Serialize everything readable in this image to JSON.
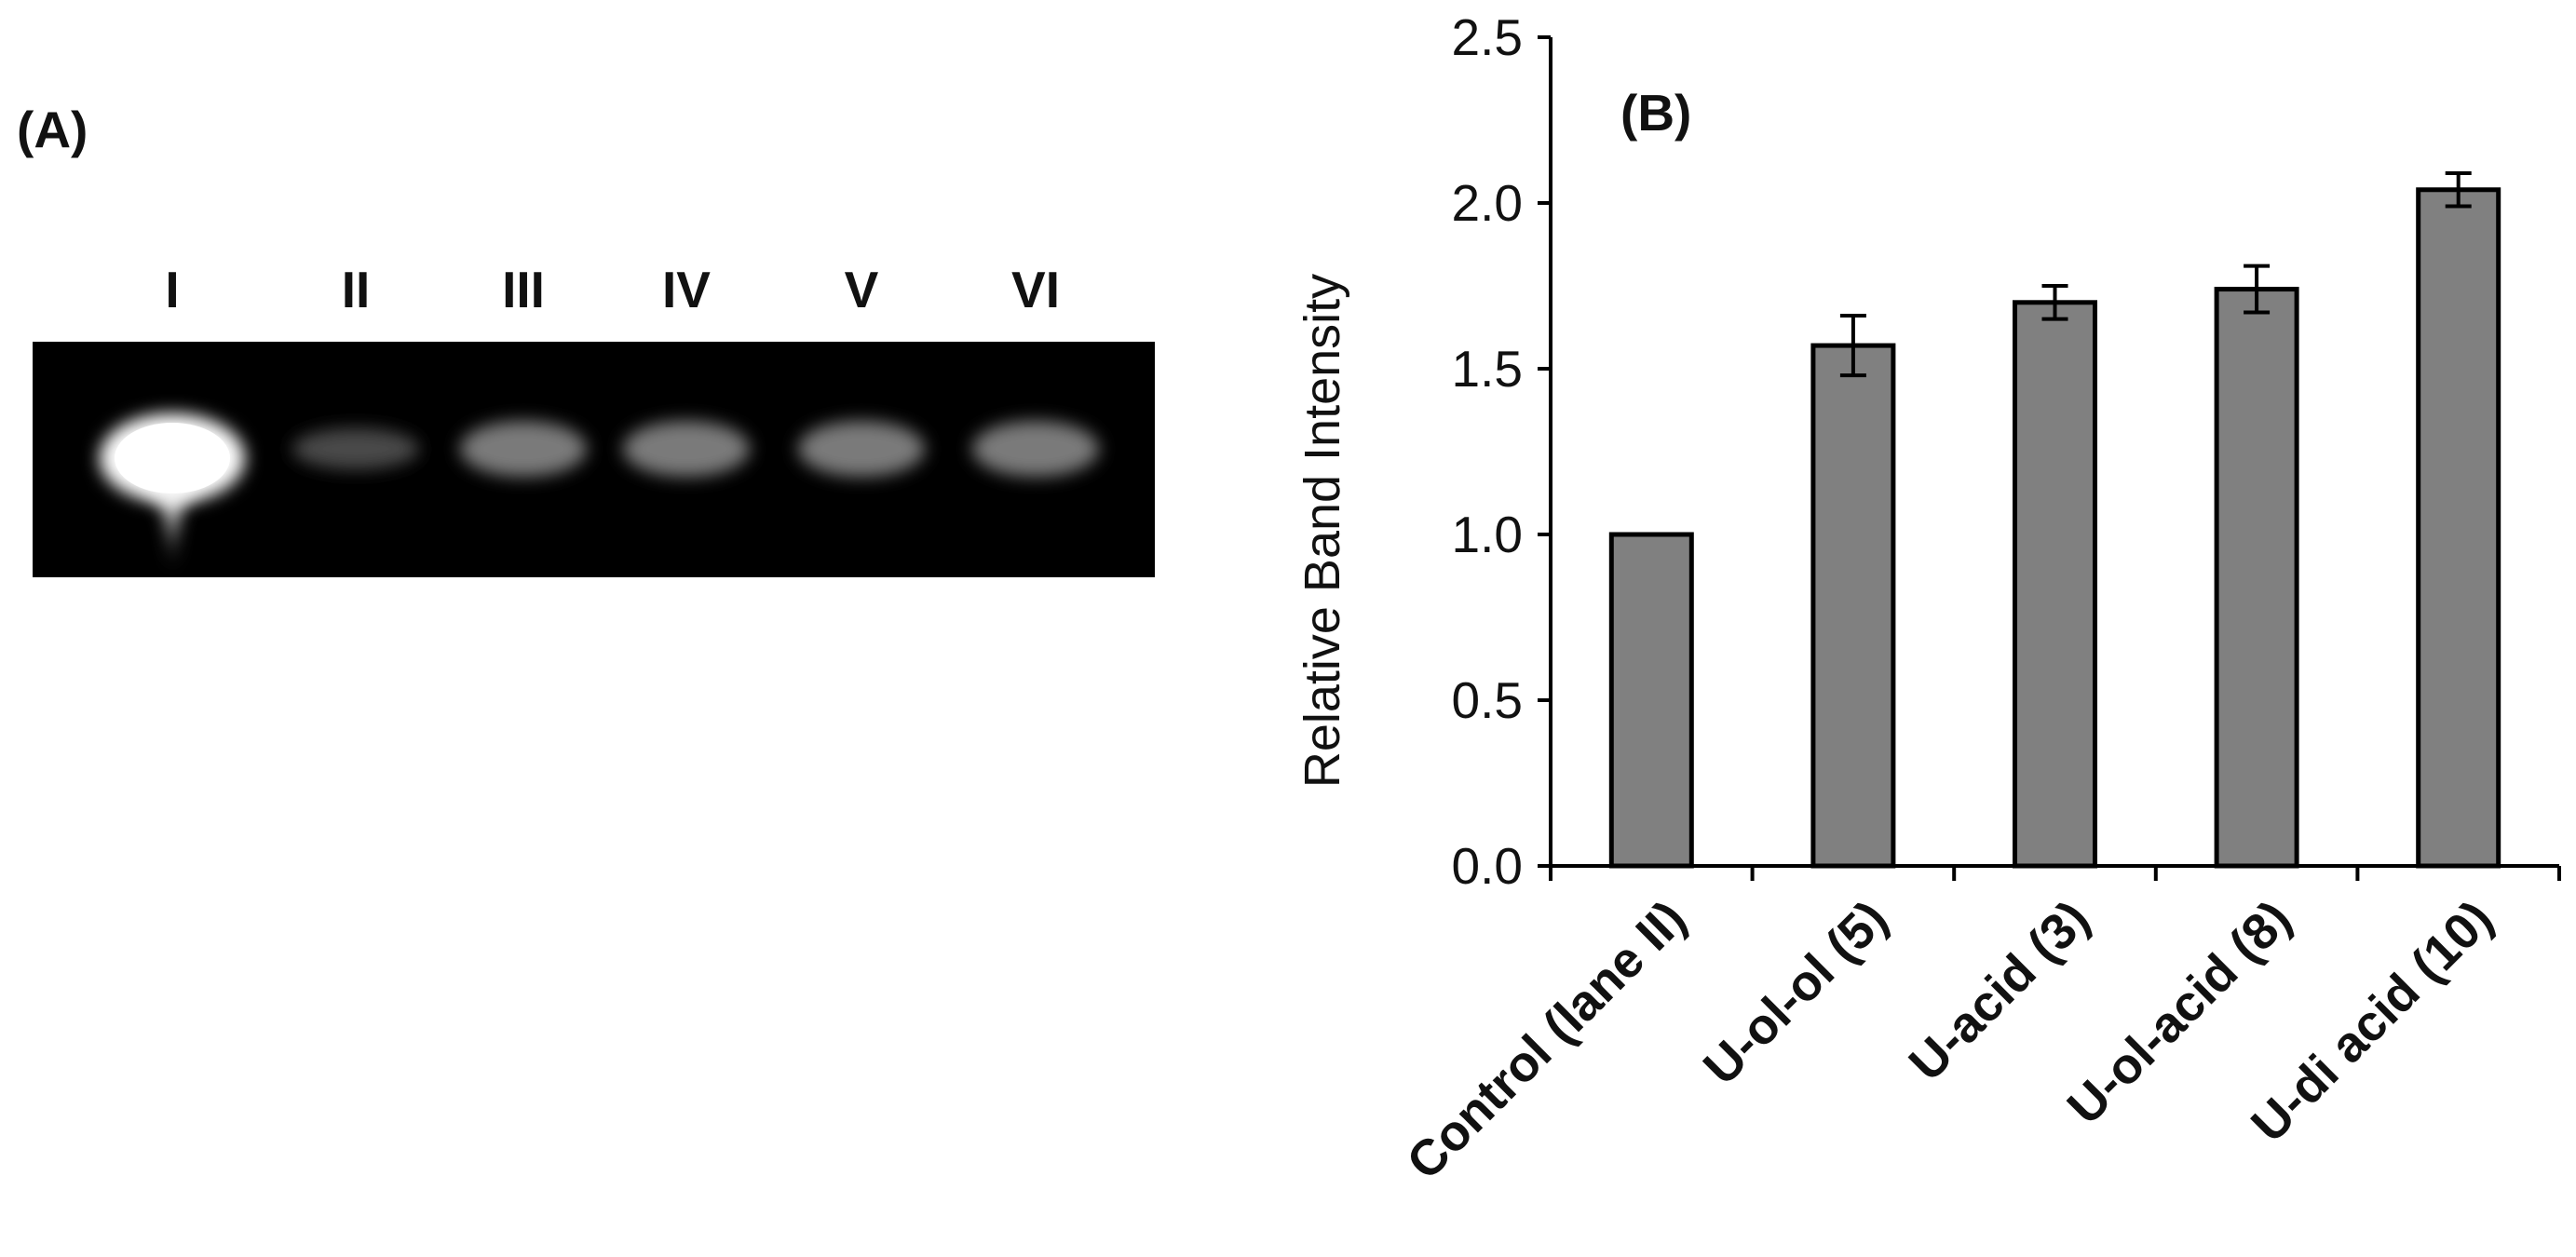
{
  "panel_a": {
    "label": "(A)",
    "lanes": [
      "I",
      "II",
      "III",
      "IV",
      "V",
      "VI"
    ]
  },
  "chart_data": {
    "type": "bar",
    "panel_label": "(B)",
    "ylabel": "Relative Band Intensity",
    "xlabel": "",
    "categories": [
      "Control (lane II)",
      "U-ol-ol (5)",
      "U-acid (3)",
      "U-ol-acid (8)",
      "U-di acid (10)"
    ],
    "values": [
      1.0,
      1.57,
      1.7,
      1.74,
      2.04
    ],
    "errors": [
      0,
      0.09,
      0.05,
      0.07,
      0.05
    ],
    "ylim": [
      0,
      2.5
    ],
    "yticks": [
      "0.0",
      "0.5",
      "1.0",
      "1.5",
      "2.0",
      "2.5"
    ],
    "bar_color": "#808080",
    "grid": false
  }
}
